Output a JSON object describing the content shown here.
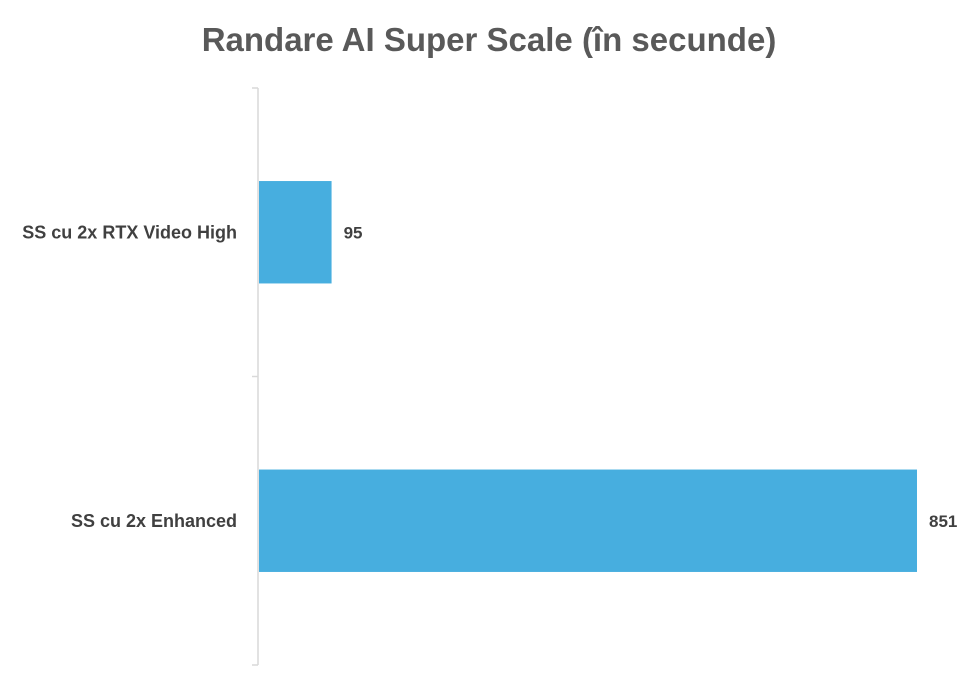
{
  "chart_data": {
    "type": "bar",
    "orientation": "horizontal",
    "title": "Randare AI Super Scale (în secunde)",
    "categories": [
      "SS cu 2x RTX Video High",
      "SS cu 2x Enhanced"
    ],
    "values": [
      95,
      851
    ],
    "xlim": [
      0,
      851
    ],
    "grid": false,
    "legend": "none",
    "bar_color": "#47AEDF"
  }
}
